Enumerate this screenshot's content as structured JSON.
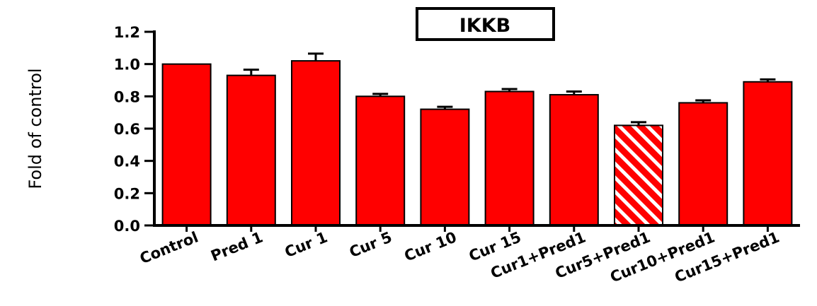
{
  "chart_data": {
    "type": "bar",
    "title": "IKKB",
    "xlabel": "",
    "ylabel": "Fold of control",
    "ylim": [
      0,
      1.2
    ],
    "yticks": [
      "0.0",
      "0.2",
      "0.4",
      "0.6",
      "0.8",
      "1.0",
      "1.2"
    ],
    "grid": false,
    "categories": [
      "Control",
      "Pred 1",
      "Cur 1",
      "Cur 5",
      "Cur 10",
      "Cur 15",
      "Cur1+Pred1",
      "Cur5+Pred1",
      "Cur10+Pred1",
      "Cur15+Pred1"
    ],
    "values": [
      1.0,
      0.93,
      1.02,
      0.8,
      0.72,
      0.83,
      0.81,
      0.62,
      0.76,
      0.89
    ],
    "errors": [
      0.0,
      0.035,
      0.045,
      0.015,
      0.015,
      0.015,
      0.02,
      0.02,
      0.015,
      0.015
    ],
    "bar_color": "#ff0000",
    "hatched_category": "Cur5+Pred1"
  }
}
